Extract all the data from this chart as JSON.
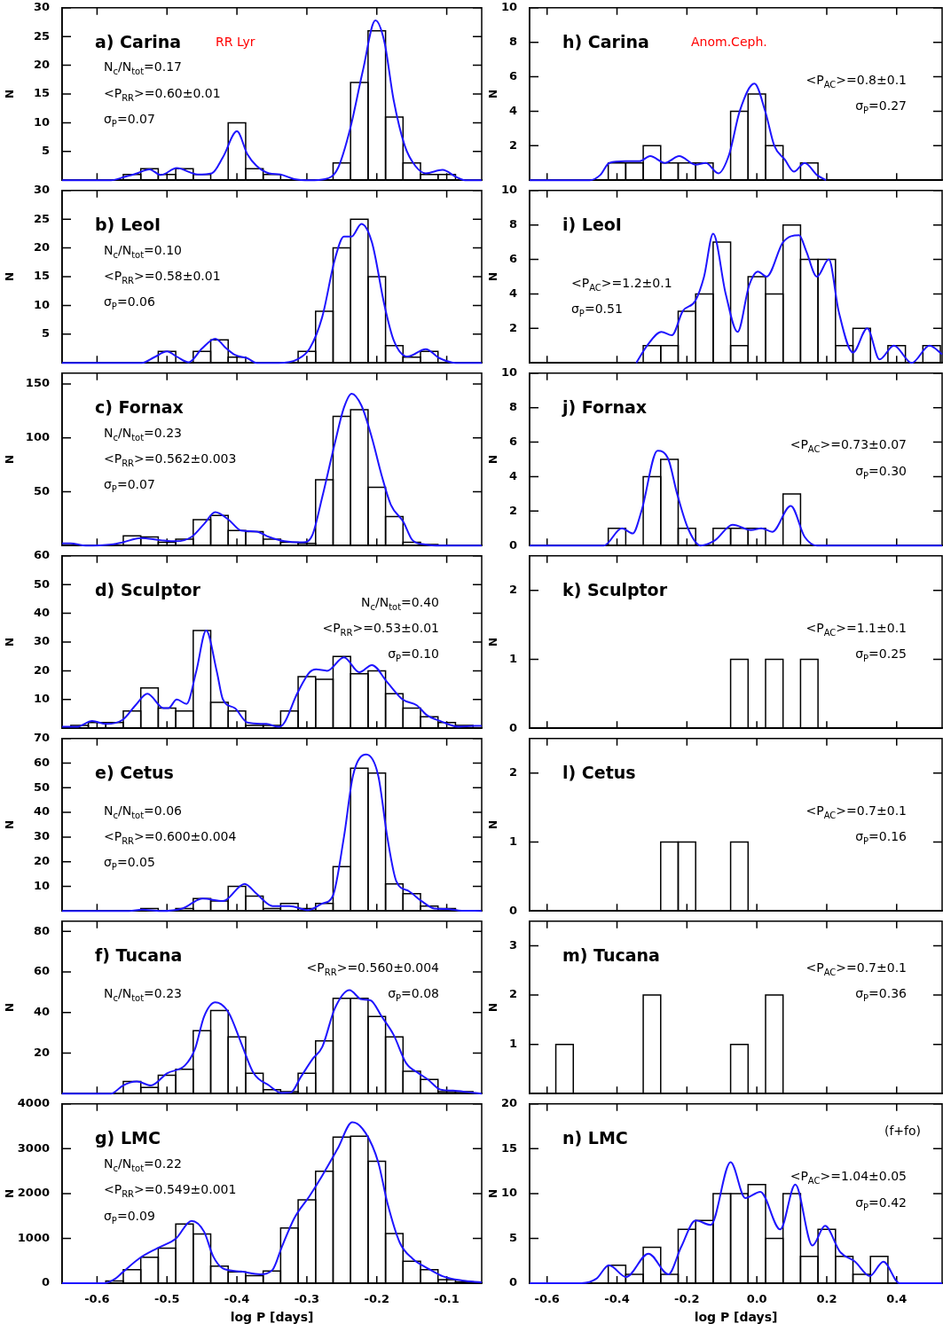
{
  "chart_data": [
    {
      "type": "histogram",
      "title": "a) Carina",
      "ylabel": "N",
      "xlim": [
        -0.65,
        -0.05
      ],
      "xticks": [
        -0.6,
        -0.5,
        -0.4,
        -0.3,
        -0.2,
        -0.1
      ],
      "ylim": [
        0,
        30
      ],
      "yticks": [
        5,
        10,
        15,
        20,
        25,
        30
      ],
      "tick_labels": "y",
      "annotations": [
        "RR Lyr",
        "N$_{c}$/N$_{tot}$=0.17",
        "<P$_{RR}$>=0.60±0.01",
        "σ$_{P}$=0.07"
      ],
      "color": "#000000",
      "bins": [
        -0.6375,
        -0.6125,
        -0.5875,
        -0.5625,
        -0.5375,
        -0.5125,
        -0.4875,
        -0.4625,
        -0.4375,
        -0.4125,
        -0.3875,
        -0.3625,
        -0.3375,
        -0.3125,
        -0.2875,
        -0.2625,
        -0.2375,
        -0.2125,
        -0.1875,
        -0.1625,
        -0.1375,
        -0.1125,
        -0.0875,
        -0.0625
      ],
      "values": [
        0,
        0,
        0,
        1,
        2,
        1,
        2,
        1,
        0,
        10,
        2,
        1,
        0,
        0,
        0,
        3,
        17,
        26,
        11,
        3,
        1,
        1,
        0
      ],
      "series": [
        {
          "type": "line",
          "color": "#1e14ff",
          "x": [
            -0.65,
            -0.58,
            -0.56,
            -0.545,
            -0.525,
            -0.509,
            -0.486,
            -0.456,
            -0.436,
            -0.42,
            -0.4,
            -0.385,
            -0.372,
            -0.354,
            -0.338,
            -0.318,
            -0.296,
            -0.274,
            -0.256,
            -0.238,
            -0.22,
            -0.202,
            -0.189,
            -0.176,
            -0.16,
            -0.145,
            -0.13,
            -0.106,
            -0.087,
            -0.074,
            -0.05
          ],
          "values": [
            0,
            0,
            0.6,
            1.1,
            1.9,
            0.9,
            2.1,
            1.0,
            1.2,
            4,
            8.5,
            4.5,
            2.5,
            1.2,
            1.0,
            0.2,
            0,
            0.2,
            2,
            9,
            19,
            27.8,
            24,
            14,
            6,
            2.5,
            1.2,
            1.8,
            0.6,
            0,
            0
          ]
        }
      ]
    },
    {
      "type": "histogram",
      "title": "b) LeoI",
      "ylabel": "N",
      "xlim": [
        -0.65,
        -0.05
      ],
      "xticks": [
        -0.6,
        -0.5,
        -0.4,
        -0.3,
        -0.2,
        -0.1
      ],
      "ylim": [
        0,
        30
      ],
      "yticks": [
        5,
        10,
        15,
        20,
        25,
        30
      ],
      "tick_labels": "y",
      "annotations": [
        "N$_{c}$/N$_{tot}$=0.10",
        "<P$_{RR}$>=0.58±0.01",
        "σ$_{P}$=0.06"
      ],
      "color": "#000000",
      "bins": [
        -0.6375,
        -0.6125,
        -0.5875,
        -0.5625,
        -0.5375,
        -0.5125,
        -0.4875,
        -0.4625,
        -0.4375,
        -0.4125,
        -0.3875,
        -0.3625,
        -0.3375,
        -0.3125,
        -0.2875,
        -0.2625,
        -0.2375,
        -0.2125,
        -0.1875,
        -0.1625,
        -0.1375,
        -0.1125,
        -0.0875,
        -0.0625
      ],
      "values": [
        0,
        0,
        0,
        0,
        0,
        2,
        0,
        2,
        4,
        1,
        0,
        0,
        0,
        2,
        9,
        20,
        25,
        15,
        3,
        1,
        2,
        0,
        0
      ],
      "series": [
        {
          "type": "line",
          "color": "#1e14ff",
          "x": [
            -0.65,
            -0.536,
            -0.518,
            -0.5,
            -0.485,
            -0.469,
            -0.45,
            -0.431,
            -0.415,
            -0.403,
            -0.385,
            -0.372,
            -0.34,
            -0.314,
            -0.296,
            -0.278,
            -0.26,
            -0.247,
            -0.236,
            -0.222,
            -0.207,
            -0.189,
            -0.176,
            -0.156,
            -0.13,
            -0.11,
            -0.087,
            -0.05
          ],
          "values": [
            0,
            0,
            1,
            2,
            1,
            0.1,
            2.5,
            4.2,
            2.5,
            1.4,
            0.8,
            0,
            0,
            0.6,
            2.5,
            8,
            18,
            22,
            22,
            24.2,
            21,
            10,
            4,
            1.1,
            2.4,
            0.8,
            0,
            0
          ]
        }
      ]
    },
    {
      "type": "histogram",
      "title": "c) Fornax",
      "ylabel": "N",
      "xlim": [
        -0.65,
        -0.05
      ],
      "xticks": [
        -0.6,
        -0.5,
        -0.4,
        -0.3,
        -0.2,
        -0.1
      ],
      "ylim": [
        0,
        160
      ],
      "yticks": [
        50,
        100,
        150
      ],
      "tick_labels": "y",
      "annotations": [
        "N$_{c}$/N$_{tot}$=0.23",
        "<P$_{RR}$>=0.562±0.003",
        "σ$_{P}$=0.07"
      ],
      "color": "#000000",
      "bins": [
        -0.6375,
        -0.6125,
        -0.5875,
        -0.5625,
        -0.5375,
        -0.5125,
        -0.4875,
        -0.4625,
        -0.4375,
        -0.4125,
        -0.3875,
        -0.3625,
        -0.3375,
        -0.3125,
        -0.2875,
        -0.2625,
        -0.2375,
        -0.2125,
        -0.1875,
        -0.1625,
        -0.1375,
        -0.1125,
        -0.0875,
        -0.0625
      ],
      "values": [
        0,
        0,
        0,
        9,
        8,
        3,
        6,
        24,
        28,
        14,
        13,
        6,
        3,
        2,
        61,
        120,
        126,
        54,
        27,
        3,
        1,
        0,
        0
      ],
      "series": [
        {
          "type": "line",
          "color": "#1e14ff",
          "x": [
            -0.65,
            -0.638,
            -0.616,
            -0.58,
            -0.563,
            -0.538,
            -0.509,
            -0.487,
            -0.465,
            -0.447,
            -0.431,
            -0.412,
            -0.394,
            -0.372,
            -0.354,
            -0.332,
            -0.305,
            -0.292,
            -0.278,
            -0.26,
            -0.247,
            -0.236,
            -0.222,
            -0.207,
            -0.193,
            -0.18,
            -0.162,
            -0.149,
            -0.131,
            -0.109,
            -0.05
          ],
          "values": [
            2,
            2,
            0,
            1,
            3,
            7,
            5,
            4,
            8,
            20,
            31,
            24,
            14,
            13,
            8,
            4,
            3,
            10,
            45,
            95,
            128,
            141,
            130,
            100,
            65,
            38,
            22,
            5,
            1,
            0,
            0
          ]
        }
      ]
    },
    {
      "type": "histogram",
      "title": "d) Sculptor",
      "ylabel": "N",
      "xlim": [
        -0.65,
        -0.05
      ],
      "xticks": [
        -0.6,
        -0.5,
        -0.4,
        -0.3,
        -0.2,
        -0.1
      ],
      "ylim": [
        0,
        60
      ],
      "yticks": [
        10,
        20,
        30,
        40,
        50,
        60
      ],
      "tick_labels": "y",
      "annotations": [
        "N$_{c}$/N$_{tot}$=0.40",
        "<P$_{RR}$>=0.53±0.01",
        "σ$_{P}$=0.10"
      ],
      "color": "#000000",
      "bins": [
        -0.6375,
        -0.6125,
        -0.5875,
        -0.5625,
        -0.5375,
        -0.5125,
        -0.4875,
        -0.4625,
        -0.4375,
        -0.4125,
        -0.3875,
        -0.3625,
        -0.3375,
        -0.3125,
        -0.2875,
        -0.2625,
        -0.2375,
        -0.2125,
        -0.1875,
        -0.1625,
        -0.1375,
        -0.1125,
        -0.0875,
        -0.0625
      ],
      "values": [
        1,
        2,
        2,
        6,
        14,
        7,
        6,
        34,
        9,
        6,
        1,
        1,
        6,
        18,
        17,
        25,
        19,
        20,
        12,
        7,
        4,
        2,
        1
      ],
      "series": [
        {
          "type": "line",
          "color": "#1e14ff",
          "x": [
            -0.65,
            -0.629,
            -0.607,
            -0.587,
            -0.563,
            -0.545,
            -0.528,
            -0.505,
            -0.498,
            -0.486,
            -0.472,
            -0.458,
            -0.444,
            -0.429,
            -0.42,
            -0.403,
            -0.385,
            -0.358,
            -0.34,
            -0.332,
            -0.314,
            -0.296,
            -0.287,
            -0.271,
            -0.247,
            -0.225,
            -0.207,
            -0.185,
            -0.163,
            -0.143,
            -0.128,
            -0.109,
            -0.083,
            -0.06,
            -0.05
          ],
          "values": [
            0.5,
            0.5,
            2.5,
            1.5,
            3,
            8,
            12,
            7,
            7,
            10,
            8.5,
            20,
            34,
            20,
            10,
            7,
            2,
            1.5,
            0.5,
            2,
            12,
            19.5,
            20.5,
            20,
            24.7,
            19.5,
            22,
            16,
            10,
            8,
            4.5,
            2.5,
            0.5,
            0.8,
            0.8
          ]
        }
      ]
    },
    {
      "type": "histogram",
      "title": "e) Cetus",
      "ylabel": "N",
      "xlim": [
        -0.65,
        -0.05
      ],
      "xticks": [
        -0.6,
        -0.5,
        -0.4,
        -0.3,
        -0.2,
        -0.1
      ],
      "ylim": [
        0,
        70
      ],
      "yticks": [
        10,
        20,
        30,
        40,
        50,
        60,
        70
      ],
      "tick_labels": "y",
      "annotations": [
        "N$_{c}$/N$_{tot}$=0.06",
        "<P$_{RR}$>=0.600±0.004",
        "σ$_{P}$=0.05"
      ],
      "color": "#000000",
      "bins": [
        -0.6375,
        -0.6125,
        -0.5875,
        -0.5625,
        -0.5375,
        -0.5125,
        -0.4875,
        -0.4625,
        -0.4375,
        -0.4125,
        -0.3875,
        -0.3625,
        -0.3375,
        -0.3125,
        -0.2875,
        -0.2625,
        -0.2375,
        -0.2125,
        -0.1875,
        -0.1625,
        -0.1375,
        -0.1125,
        -0.0875,
        -0.0625
      ],
      "values": [
        0,
        0,
        0,
        0,
        1,
        0,
        1,
        5,
        4,
        10,
        6,
        1,
        3,
        1,
        3,
        18,
        58,
        56,
        11,
        7,
        2,
        1,
        0
      ],
      "series": [
        {
          "type": "line",
          "color": "#1e14ff",
          "x": [
            -0.65,
            -0.554,
            -0.536,
            -0.509,
            -0.478,
            -0.449,
            -0.42,
            -0.389,
            -0.372,
            -0.349,
            -0.325,
            -0.298,
            -0.278,
            -0.263,
            -0.247,
            -0.234,
            -0.215,
            -0.198,
            -0.185,
            -0.172,
            -0.154,
            -0.136,
            -0.118,
            -0.1,
            -0.083,
            -0.05
          ],
          "values": [
            0,
            0,
            0.5,
            0,
            1,
            5,
            4,
            11,
            7,
            2,
            2,
            0.3,
            3,
            6,
            30,
            55,
            63.5,
            55,
            30,
            12,
            8,
            4,
            1,
            0.8,
            0.2,
            0
          ]
        }
      ]
    },
    {
      "type": "histogram",
      "title": "f) Tucana",
      "ylabel": "N",
      "xlim": [
        -0.65,
        -0.05
      ],
      "xticks": [
        -0.6,
        -0.5,
        -0.4,
        -0.3,
        -0.2,
        -0.1
      ],
      "ylim": [
        0,
        85
      ],
      "yticks": [
        20,
        40,
        60,
        80
      ],
      "tick_labels": "y",
      "annotations": [
        "N$_{c}$/N$_{tot}$=0.23",
        "<P$_{RR}$>=0.560±0.004",
        "σ$_{P}$=0.08"
      ],
      "color": "#000000",
      "bins": [
        -0.6375,
        -0.6125,
        -0.5875,
        -0.5625,
        -0.5375,
        -0.5125,
        -0.4875,
        -0.4625,
        -0.4375,
        -0.4125,
        -0.3875,
        -0.3625,
        -0.3375,
        -0.3125,
        -0.2875,
        -0.2625,
        -0.2375,
        -0.2125,
        -0.1875,
        -0.1625,
        -0.1375,
        -0.1125,
        -0.0875,
        -0.0625
      ],
      "values": [
        0,
        0,
        0,
        6,
        3,
        9,
        12,
        31,
        41,
        28,
        10,
        2,
        1,
        10,
        26,
        47,
        47,
        38,
        28,
        11,
        7,
        1,
        1
      ],
      "series": [
        {
          "type": "line",
          "color": "#1e14ff",
          "x": [
            -0.65,
            -0.58,
            -0.576,
            -0.563,
            -0.543,
            -0.523,
            -0.5,
            -0.474,
            -0.46,
            -0.447,
            -0.431,
            -0.412,
            -0.394,
            -0.376,
            -0.354,
            -0.336,
            -0.323,
            -0.309,
            -0.292,
            -0.278,
            -0.26,
            -0.239,
            -0.222,
            -0.209,
            -0.193,
            -0.176,
            -0.158,
            -0.14,
            -0.127,
            -0.109,
            -0.091,
            -0.065,
            -0.05
          ],
          "values": [
            0,
            0,
            0.5,
            4,
            6,
            4,
            10,
            14,
            22,
            38,
            45,
            40,
            25,
            10,
            4,
            0.3,
            0.5,
            8,
            17,
            23,
            42,
            51,
            46.5,
            46,
            38,
            29,
            15,
            10,
            7,
            2,
            1.5,
            0.5,
            0
          ]
        }
      ]
    },
    {
      "type": "histogram",
      "title": "g) LMC",
      "xlabel": "log P [days]",
      "ylabel": "N",
      "xlim": [
        -0.65,
        -0.05
      ],
      "xticks": [
        -0.6,
        -0.5,
        -0.4,
        -0.3,
        -0.2,
        -0.1
      ],
      "ylim": [
        0,
        4000
      ],
      "yticks": [
        0,
        1000,
        2000,
        3000,
        4000
      ],
      "annotations": [
        "N$_{c}$/N$_{tot}$=0.22",
        "<P$_{RR}$>=0.549±0.001",
        "σ$_{P}$=0.09"
      ],
      "color": "#000000",
      "bins": [
        -0.6375,
        -0.6125,
        -0.5875,
        -0.5625,
        -0.5375,
        -0.5125,
        -0.4875,
        -0.4625,
        -0.4375,
        -0.4125,
        -0.3875,
        -0.3625,
        -0.3375,
        -0.3125,
        -0.2875,
        -0.2625,
        -0.2375,
        -0.2125,
        -0.1875,
        -0.1625,
        -0.1375,
        -0.1125,
        -0.0875,
        -0.0625
      ],
      "values": [
        0,
        0,
        50,
        300,
        580,
        780,
        1320,
        1100,
        380,
        250,
        170,
        270,
        1230,
        1860,
        2500,
        3260,
        3280,
        2720,
        1110,
        490,
        300,
        80,
        30
      ],
      "series": [
        {
          "type": "line",
          "color": "#1e14ff",
          "x": [
            -0.65,
            -0.59,
            -0.576,
            -0.563,
            -0.54,
            -0.514,
            -0.487,
            -0.465,
            -0.447,
            -0.434,
            -0.42,
            -0.394,
            -0.367,
            -0.349,
            -0.336,
            -0.318,
            -0.296,
            -0.278,
            -0.256,
            -0.235,
            -0.216,
            -0.198,
            -0.185,
            -0.167,
            -0.149,
            -0.127,
            -0.105,
            -0.078,
            -0.05
          ],
          "values": [
            0,
            0,
            80,
            250,
            550,
            780,
            1000,
            1390,
            1150,
            600,
            330,
            260,
            200,
            300,
            800,
            1450,
            1950,
            2400,
            3000,
            3590,
            3350,
            2700,
            1800,
            900,
            550,
            330,
            150,
            60,
            20
          ]
        }
      ]
    },
    {
      "type": "histogram",
      "title": "h) Carina",
      "ylabel": "N",
      "xlim": [
        -0.65,
        0.53
      ],
      "xticks": [
        -0.6,
        -0.4,
        -0.2,
        0,
        0.2,
        0.4
      ],
      "ylim": [
        0,
        10
      ],
      "yticks": [
        2,
        4,
        6,
        8,
        10
      ],
      "tick_labels": "y",
      "annotations": [
        "Anom.Ceph.",
        "<P$_{AC}$>=0.8±0.1",
        "σ$_{P}$=0.27"
      ],
      "color": "#000000",
      "bins": [
        -0.625,
        -0.575,
        -0.525,
        -0.475,
        -0.425,
        -0.375,
        -0.325,
        -0.275,
        -0.225,
        -0.175,
        -0.125,
        -0.075,
        -0.025,
        0.025,
        0.075,
        0.125,
        0.175,
        0.225,
        0.275,
        0.325,
        0.375,
        0.425,
        0.475,
        0.525
      ],
      "values": [
        0,
        0,
        0,
        0,
        1,
        1,
        2,
        1,
        1,
        1,
        0,
        4,
        5,
        2,
        0,
        1,
        0,
        0,
        0,
        0,
        0,
        0,
        0
      ],
      "series": [
        {
          "type": "line",
          "color": "#1e14ff",
          "x": [
            -0.65,
            -0.478,
            -0.448,
            -0.422,
            -0.376,
            -0.335,
            -0.305,
            -0.263,
            -0.222,
            -0.176,
            -0.146,
            -0.11,
            -0.079,
            -0.049,
            -0.007,
            0.024,
            0.05,
            0.08,
            0.106,
            0.137,
            0.172,
            0.198
          ],
          "values": [
            0,
            0,
            0.3,
            1,
            1.1,
            1.1,
            1.4,
            1,
            1.4,
            0.9,
            1,
            0.4,
            1.5,
            4,
            5.6,
            4,
            2,
            1.2,
            0.5,
            1,
            0.3,
            0
          ]
        }
      ]
    },
    {
      "type": "histogram",
      "title": "i) LeoI",
      "ylabel": "N",
      "xlim": [
        -0.65,
        0.53
      ],
      "xticks": [
        -0.6,
        -0.4,
        -0.2,
        0,
        0.2,
        0.4
      ],
      "ylim": [
        0,
        10
      ],
      "yticks": [
        2,
        4,
        6,
        8,
        10
      ],
      "tick_labels": "y",
      "annotations": [
        "<P$_{AC}$>=1.2±0.1",
        "σ$_{P}$=0.51"
      ],
      "color": "#000000",
      "bins": [
        -0.625,
        -0.575,
        -0.525,
        -0.475,
        -0.425,
        -0.375,
        -0.325,
        -0.275,
        -0.225,
        -0.175,
        -0.125,
        -0.075,
        -0.025,
        0.025,
        0.075,
        0.125,
        0.175,
        0.225,
        0.275,
        0.325,
        0.375,
        0.425,
        0.475,
        0.525
      ],
      "values": [
        0,
        0,
        0,
        0,
        0,
        0,
        1,
        1,
        3,
        4,
        7,
        1,
        5,
        4,
        8,
        6,
        6,
        1,
        2,
        0,
        1,
        0,
        1
      ],
      "series": [
        {
          "type": "line",
          "color": "#1e14ff",
          "x": [
            -0.345,
            -0.314,
            -0.273,
            -0.243,
            -0.212,
            -0.176,
            -0.151,
            -0.125,
            -0.089,
            -0.055,
            -0.022,
            0.003,
            0.028,
            0.075,
            0.121,
            0.141,
            0.172,
            0.206,
            0.234,
            0.275,
            0.316,
            0.351,
            0.392,
            0.443,
            0.494,
            0.53
          ],
          "values": [
            0,
            1,
            1.8,
            1.6,
            3,
            3.6,
            5,
            7.5,
            4,
            1.8,
            4.5,
            5.3,
            5,
            7,
            7.4,
            6.5,
            5,
            6,
            3,
            0.6,
            2,
            0.2,
            1,
            0,
            1,
            0.5
          ]
        }
      ]
    },
    {
      "type": "histogram",
      "title": "j) Fornax",
      "ylabel": "N",
      "xlim": [
        -0.65,
        0.53
      ],
      "xticks": [
        -0.6,
        -0.4,
        -0.2,
        0,
        0.2,
        0.4
      ],
      "ylim": [
        0,
        10
      ],
      "yticks": [
        0,
        2,
        4,
        6,
        8,
        10
      ],
      "tick_labels": "y",
      "annotations": [
        "<P$_{AC}$>=0.73±0.07",
        "σ$_{P}$=0.30"
      ],
      "color": "#000000",
      "bins": [
        -0.625,
        -0.575,
        -0.525,
        -0.475,
        -0.425,
        -0.375,
        -0.325,
        -0.275,
        -0.225,
        -0.175,
        -0.125,
        -0.075,
        -0.025,
        0.025,
        0.075,
        0.125,
        0.175,
        0.225,
        0.275,
        0.325,
        0.375,
        0.425,
        0.475,
        0.525
      ],
      "values": [
        0,
        0,
        0,
        0,
        1,
        0,
        4,
        5,
        1,
        0,
        1,
        1,
        1,
        0,
        3,
        0,
        0,
        0,
        0,
        0,
        0,
        0,
        0
      ],
      "series": [
        {
          "type": "line",
          "color": "#1e14ff",
          "x": [
            -0.65,
            -0.438,
            -0.386,
            -0.355,
            -0.33,
            -0.284,
            -0.253,
            -0.228,
            -0.197,
            -0.161,
            -0.12,
            -0.069,
            -0.017,
            0.013,
            0.044,
            0.097,
            0.137,
            0.172,
            0.53
          ],
          "values": [
            0,
            0,
            1,
            0.7,
            2,
            5.5,
            5,
            3,
            1,
            0,
            0.3,
            1.2,
            0.9,
            1,
            0.8,
            2.3,
            0.5,
            0,
            0
          ]
        }
      ]
    },
    {
      "type": "histogram",
      "title": "k) Sculptor",
      "ylabel": "N",
      "xlim": [
        -0.65,
        0.53
      ],
      "xticks": [
        -0.6,
        -0.4,
        -0.2,
        0,
        0.2,
        0.4
      ],
      "ylim": [
        0,
        2.5
      ],
      "yticks": [
        0,
        1,
        2
      ],
      "tick_labels": "y",
      "annotations": [
        "<P$_{AC}$>=1.1±0.1",
        "σ$_{P}$=0.25"
      ],
      "color": "#000000",
      "bins": [
        -0.625,
        -0.575,
        -0.525,
        -0.475,
        -0.425,
        -0.375,
        -0.325,
        -0.275,
        -0.225,
        -0.175,
        -0.125,
        -0.075,
        -0.025,
        0.025,
        0.075,
        0.125,
        0.175,
        0.225,
        0.275,
        0.325,
        0.375,
        0.425,
        0.475,
        0.525
      ],
      "values": [
        0,
        0,
        0,
        0,
        0,
        0,
        0,
        0,
        0,
        0,
        0,
        1,
        0,
        1,
        0,
        1,
        0,
        0,
        0,
        0,
        0,
        0,
        0
      ]
    },
    {
      "type": "histogram",
      "title": "l) Cetus",
      "ylabel": "N",
      "xlim": [
        -0.65,
        0.53
      ],
      "xticks": [
        -0.6,
        -0.4,
        -0.2,
        0,
        0.2,
        0.4
      ],
      "ylim": [
        0,
        2.5
      ],
      "yticks": [
        0,
        1,
        2
      ],
      "tick_labels": "y",
      "annotations": [
        "<P$_{AC}$>=0.7±0.1",
        "σ$_{P}$=0.16"
      ],
      "color": "#000000",
      "bins": [
        -0.625,
        -0.575,
        -0.525,
        -0.475,
        -0.425,
        -0.375,
        -0.325,
        -0.275,
        -0.225,
        -0.175,
        -0.125,
        -0.075,
        -0.025,
        0.025,
        0.075,
        0.125,
        0.175,
        0.225,
        0.275,
        0.325,
        0.375,
        0.425,
        0.475,
        0.525
      ],
      "values": [
        0,
        0,
        0,
        0,
        0,
        0,
        0,
        1,
        1,
        0,
        0,
        1,
        0,
        0,
        0,
        0,
        0,
        0,
        0,
        0,
        0,
        0,
        0
      ]
    },
    {
      "type": "histogram",
      "title": "m) Tucana",
      "ylabel": "N",
      "xlim": [
        -0.65,
        0.53
      ],
      "xticks": [
        -0.6,
        -0.4,
        -0.2,
        0,
        0.2,
        0.4
      ],
      "ylim": [
        0,
        3.5
      ],
      "yticks": [
        1,
        2,
        3
      ],
      "tick_labels": "y",
      "annotations": [
        "<P$_{AC}$>=0.7±0.1",
        "σ$_{P}$=0.36"
      ],
      "color": "#000000",
      "bins": [
        -0.625,
        -0.575,
        -0.525,
        -0.475,
        -0.425,
        -0.375,
        -0.325,
        -0.275,
        -0.225,
        -0.175,
        -0.125,
        -0.075,
        -0.025,
        0.025,
        0.075,
        0.125,
        0.175,
        0.225,
        0.275,
        0.325,
        0.375,
        0.425,
        0.475,
        0.525
      ],
      "values": [
        0,
        1,
        0,
        0,
        0,
        0,
        2,
        0,
        0,
        0,
        0,
        1,
        0,
        2,
        0,
        0,
        0,
        0,
        0,
        0,
        0,
        0,
        0
      ]
    },
    {
      "type": "histogram",
      "title": "n) LMC",
      "xlabel": "log P [days]",
      "ylabel": "N",
      "xlim": [
        -0.65,
        0.53
      ],
      "xticks": [
        -0.6,
        -0.4,
        -0.2,
        {
          "value": 0,
          "label": "0.0"
        },
        0.2,
        0.4
      ],
      "ylim": [
        0,
        20
      ],
      "yticks": [
        0,
        5,
        10,
        15,
        20
      ],
      "annotations": [
        "(f+fo)",
        "<P$_{AC}$>=1.04±0.05",
        "σ$_{P}$=0.42"
      ],
      "color": "#000000",
      "bins": [
        -0.625,
        -0.575,
        -0.525,
        -0.475,
        -0.425,
        -0.375,
        -0.325,
        -0.275,
        -0.225,
        -0.175,
        -0.125,
        -0.075,
        -0.025,
        0.025,
        0.075,
        0.125,
        0.175,
        0.225,
        0.275,
        0.325,
        0.375,
        0.425,
        0.475,
        0.525
      ],
      "values": [
        0,
        0,
        0,
        0,
        2,
        1,
        4,
        1,
        6,
        7,
        10,
        10,
        11,
        5,
        10,
        3,
        6,
        3,
        1,
        3,
        0,
        0,
        0
      ],
      "series": [
        {
          "type": "line",
          "color": "#1e14ff",
          "x": [
            -0.65,
            -0.502,
            -0.459,
            -0.423,
            -0.374,
            -0.31,
            -0.253,
            -0.217,
            -0.175,
            -0.132,
            -0.075,
            -0.033,
            0.01,
            0.067,
            0.11,
            0.159,
            0.195,
            0.238,
            0.281,
            0.323,
            0.362,
            0.408,
            0.53
          ],
          "values": [
            0,
            0,
            0.5,
            2,
            0.7,
            3.3,
            1,
            4,
            7,
            6.5,
            13.5,
            9.5,
            10.2,
            6,
            11,
            4.2,
            6.4,
            3.5,
            2.4,
            0.8,
            2.4,
            0,
            0
          ]
        }
      ]
    }
  ]
}
